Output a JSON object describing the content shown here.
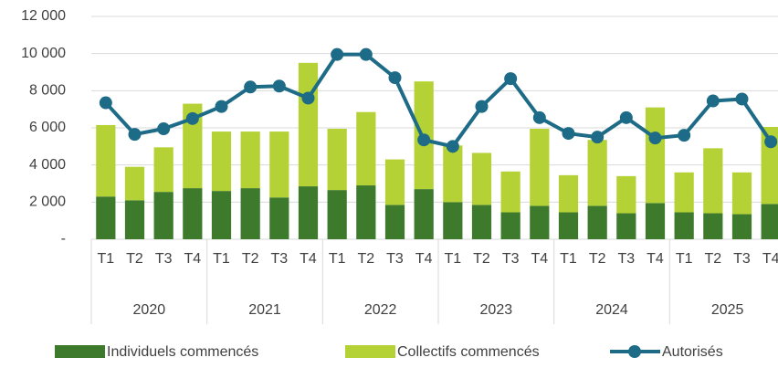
{
  "chart_data": {
    "type": "bar_line",
    "categories": [
      "T1",
      "T2",
      "T3",
      "T4",
      "T1",
      "T2",
      "T3",
      "T4",
      "T1",
      "T2",
      "T3",
      "T4",
      "T1",
      "T2",
      "T3",
      "T4",
      "T1",
      "T2",
      "T3",
      "T4",
      "T1",
      "T2",
      "T3",
      "T4"
    ],
    "year_groups": [
      "2020",
      "2021",
      "2022",
      "2023",
      "2024",
      "2025"
    ],
    "series": [
      {
        "name": "Individuels commencés",
        "color": "#3d7a2c",
        "kind": "bar",
        "values": [
          2300,
          2100,
          2550,
          2750,
          2600,
          2750,
          2250,
          2850,
          2650,
          2900,
          1850,
          2700,
          2000,
          1850,
          1450,
          1800,
          1450,
          1800,
          1400,
          1950,
          1450,
          1400,
          1350,
          1900
        ]
      },
      {
        "name": "Collectifs commencés",
        "color": "#b4d235",
        "kind": "bar",
        "values": [
          3850,
          1800,
          2400,
          4550,
          3200,
          3050,
          3550,
          6650,
          3300,
          3950,
          2450,
          5800,
          3050,
          2800,
          2200,
          4150,
          2000,
          3550,
          2000,
          5150,
          2150,
          3500,
          2250,
          4150
        ]
      },
      {
        "name": "Autorisés",
        "color": "#1d6b87",
        "kind": "line",
        "values": [
          7350,
          5650,
          5950,
          6500,
          7150,
          8200,
          8250,
          7600,
          9950,
          9950,
          8700,
          5350,
          5000,
          7150,
          8650,
          6550,
          5700,
          5500,
          6550,
          5450,
          5600,
          7450,
          7550,
          5250
        ]
      }
    ],
    "ylim": [
      0,
      12000
    ],
    "yticks": [
      {
        "value": 0,
        "label": "-"
      },
      {
        "value": 2000,
        "label": "2 000"
      },
      {
        "value": 4000,
        "label": "4 000"
      },
      {
        "value": 6000,
        "label": "6 000"
      },
      {
        "value": 8000,
        "label": "8 000"
      },
      {
        "value": 10000,
        "label": "10 000"
      },
      {
        "value": 12000,
        "label": "12 000"
      }
    ],
    "grid": true
  }
}
